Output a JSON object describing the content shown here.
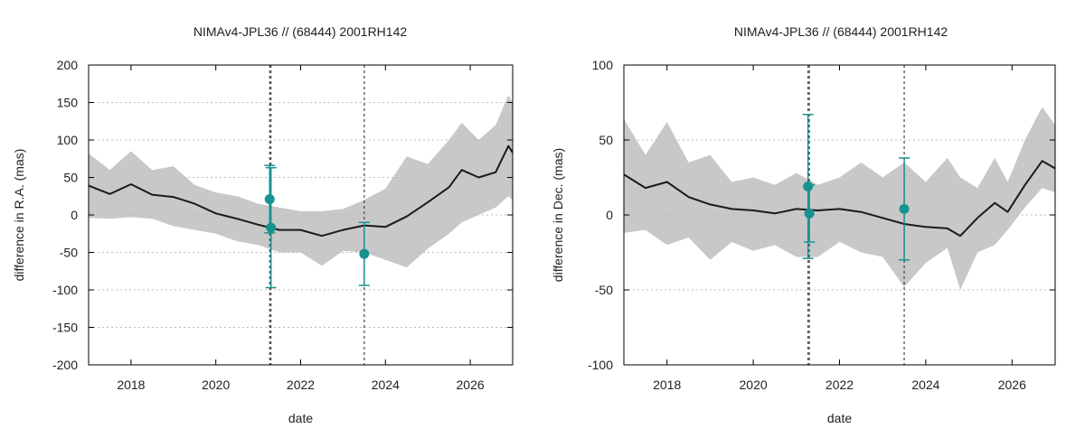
{
  "colors": {
    "band": "#c8c8c8",
    "line": "#1a1a1a",
    "point": "#16938f",
    "errorbar": "#16938f",
    "grid": "#bbbbbb",
    "vline": "#444444"
  },
  "chart_data": [
    {
      "type": "line",
      "title": "NIMAv4-JPL36 // (68444) 2001RH142",
      "xlabel": "date",
      "ylabel": "difference in R.A. (mas)",
      "xlim": [
        2017.0,
        2027.0
      ],
      "ylim": [
        -200,
        200
      ],
      "xticks": [
        2018,
        2020,
        2022,
        2024,
        2026
      ],
      "xtick_labels": [
        "2018",
        "2020",
        "2022",
        "2024",
        "2026"
      ],
      "yticks": [
        -200,
        -150,
        -100,
        -50,
        0,
        50,
        100,
        150,
        200
      ],
      "ytick_labels": [
        "-200",
        "-150",
        "-100",
        "-50",
        "0",
        "50",
        "100",
        "150",
        "200"
      ],
      "grid": true,
      "series": [
        {
          "name": "difference",
          "x": [
            2017.0,
            2017.5,
            2018.0,
            2018.5,
            2019.0,
            2019.5,
            2020.0,
            2020.5,
            2021.0,
            2021.5,
            2022.0,
            2022.5,
            2023.0,
            2023.5,
            2024.0,
            2024.5,
            2025.0,
            2025.5,
            2025.8,
            2026.2,
            2026.6,
            2026.9,
            2027.0
          ],
          "y": [
            39,
            28,
            41,
            27,
            24,
            15,
            2,
            -5,
            -13,
            -20,
            -20,
            -28,
            -20,
            -14,
            -16,
            -2,
            17,
            37,
            60,
            50,
            57,
            92,
            83
          ]
        }
      ],
      "band": {
        "x": [
          2017.0,
          2017.5,
          2018.0,
          2018.5,
          2019.0,
          2019.5,
          2020.0,
          2020.5,
          2021.0,
          2021.5,
          2022.0,
          2022.5,
          2023.0,
          2023.5,
          2024.0,
          2024.5,
          2025.0,
          2025.5,
          2025.8,
          2026.2,
          2026.6,
          2026.9,
          2027.0
        ],
        "upper": [
          82,
          60,
          85,
          60,
          65,
          40,
          30,
          25,
          15,
          10,
          5,
          5,
          8,
          20,
          35,
          78,
          68,
          100,
          123,
          100,
          120,
          160,
          150
        ],
        "lower": [
          -4,
          -5,
          -3,
          -5,
          -15,
          -20,
          -25,
          -35,
          -40,
          -50,
          -50,
          -68,
          -48,
          -50,
          -60,
          -70,
          -45,
          -25,
          -10,
          0,
          10,
          25,
          20
        ]
      },
      "points": [
        {
          "x": 2021.27,
          "y": 21,
          "err": 45
        },
        {
          "x": 2021.3,
          "y": -17,
          "err": 80
        },
        {
          "x": 2023.5,
          "y": -52,
          "err": 42
        }
      ],
      "vlines": [
        2021.27,
        2021.3,
        2023.5
      ]
    },
    {
      "type": "line",
      "title": "NIMAv4-JPL36 // (68444) 2001RH142",
      "xlabel": "date",
      "ylabel": "difference in Dec. (mas)",
      "xlim": [
        2017.0,
        2027.0
      ],
      "ylim": [
        -100,
        100
      ],
      "xticks": [
        2018,
        2020,
        2022,
        2024,
        2026
      ],
      "xtick_labels": [
        "2018",
        "2020",
        "2022",
        "2024",
        "2026"
      ],
      "yticks": [
        -100,
        -50,
        0,
        50,
        100
      ],
      "ytick_labels": [
        "-100",
        "-50",
        "0",
        "50",
        "100"
      ],
      "grid": true,
      "series": [
        {
          "name": "difference",
          "x": [
            2017.0,
            2017.5,
            2018.0,
            2018.5,
            2019.0,
            2019.5,
            2020.0,
            2020.5,
            2021.0,
            2021.5,
            2022.0,
            2022.5,
            2023.0,
            2023.5,
            2024.0,
            2024.5,
            2024.8,
            2025.2,
            2025.6,
            2025.9,
            2026.3,
            2026.7,
            2027.0
          ],
          "y": [
            27,
            18,
            22,
            12,
            7,
            4,
            3,
            1,
            4,
            3,
            4,
            2,
            -2,
            -6,
            -8,
            -9,
            -14,
            -2,
            8,
            2,
            20,
            36,
            31
          ]
        }
      ],
      "band": {
        "x": [
          2017.0,
          2017.5,
          2018.0,
          2018.5,
          2019.0,
          2019.5,
          2020.0,
          2020.5,
          2021.0,
          2021.5,
          2022.0,
          2022.5,
          2023.0,
          2023.5,
          2024.0,
          2024.5,
          2024.8,
          2025.2,
          2025.6,
          2025.9,
          2026.3,
          2026.7,
          2027.0
        ],
        "upper": [
          64,
          40,
          62,
          35,
          40,
          22,
          25,
          20,
          28,
          20,
          25,
          35,
          25,
          35,
          22,
          38,
          25,
          18,
          38,
          22,
          50,
          72,
          60
        ],
        "lower": [
          -12,
          -10,
          -20,
          -15,
          -30,
          -18,
          -24,
          -20,
          -28,
          -28,
          -18,
          -25,
          -28,
          -48,
          -32,
          -22,
          -50,
          -25,
          -20,
          -10,
          5,
          18,
          15
        ]
      },
      "points": [
        {
          "x": 2021.27,
          "y": 19,
          "err": 48
        },
        {
          "x": 2021.3,
          "y": 1,
          "err": 19
        },
        {
          "x": 2023.5,
          "y": 4,
          "err": 34
        }
      ],
      "vlines": [
        2021.27,
        2021.3,
        2023.5
      ]
    }
  ]
}
